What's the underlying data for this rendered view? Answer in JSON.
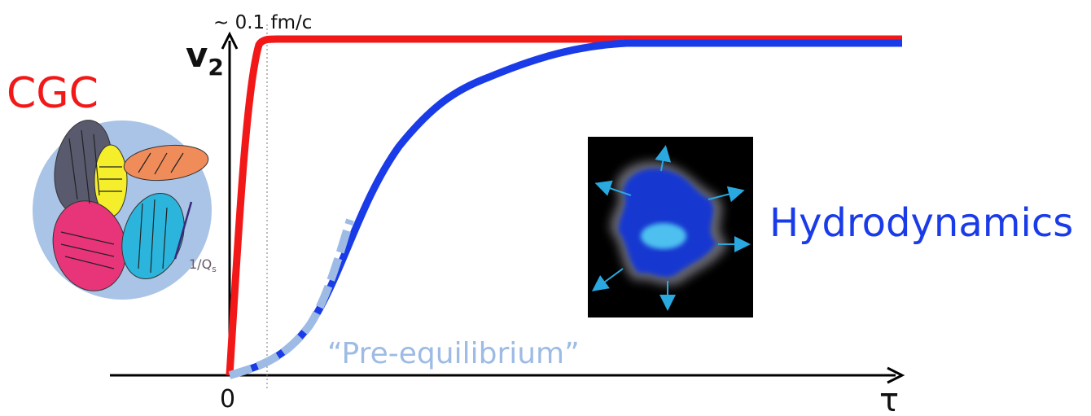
{
  "labels": {
    "time_scale": "~ 0.1 fm/c",
    "y_axis": "v",
    "y_axis_sub": "2",
    "cgc": "CGC",
    "saturation_scale": "1/Q",
    "saturation_sub": "s",
    "hydro": "Hydrodynamics",
    "pre_eq": "“Pre-equilibrium”",
    "origin": "0",
    "x_axis": "τ"
  }
}
